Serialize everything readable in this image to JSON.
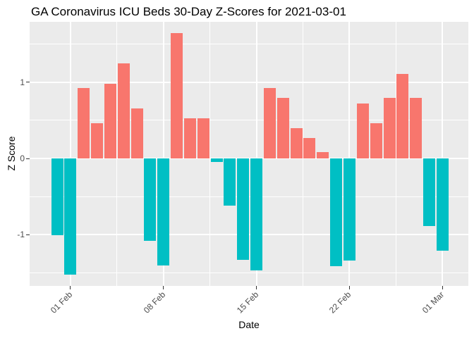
{
  "chart_data": {
    "type": "bar",
    "title": "GA Coronavirus ICU Beds 30-Day Z-Scores for 2021-03-01",
    "xlabel": "Date",
    "ylabel": "Z Score",
    "x": [
      "2021-01-31",
      "2021-02-01",
      "2021-02-02",
      "2021-02-03",
      "2021-02-04",
      "2021-02-05",
      "2021-02-06",
      "2021-02-07",
      "2021-02-08",
      "2021-02-09",
      "2021-02-10",
      "2021-02-11",
      "2021-02-12",
      "2021-02-13",
      "2021-02-14",
      "2021-02-15",
      "2021-02-16",
      "2021-02-17",
      "2021-02-18",
      "2021-02-19",
      "2021-02-20",
      "2021-02-21",
      "2021-02-22",
      "2021-02-23",
      "2021-02-24",
      "2021-02-25",
      "2021-02-26",
      "2021-02-27",
      "2021-02-28",
      "2021-03-01"
    ],
    "values": [
      -1.01,
      -1.52,
      0.92,
      0.46,
      0.98,
      1.25,
      0.66,
      -1.08,
      -1.4,
      1.64,
      0.53,
      0.53,
      -0.05,
      -0.62,
      -1.33,
      -1.47,
      0.92,
      0.79,
      0.4,
      0.27,
      0.08,
      -1.41,
      -1.34,
      0.72,
      0.46,
      0.79,
      1.11,
      0.79,
      -0.89,
      -1.21
    ],
    "ylim": [
      -1.68,
      1.8
    ],
    "y_major_ticks": [
      1,
      0,
      -1
    ],
    "y_tick_labels": [
      "1",
      "0",
      "-1"
    ],
    "y_minor_gridlines": [
      1.5,
      0.5,
      -0.5,
      -1.5
    ],
    "x_tick_labels": [
      "01 Feb",
      "08 Feb",
      "15 Feb",
      "22 Feb",
      "01 Mar"
    ],
    "x_tick_positions": [
      1,
      8,
      15,
      22,
      29
    ],
    "x_minor_positions": [
      4.5,
      11.5,
      18.5,
      25.5
    ],
    "grid": true,
    "legend": "none",
    "colors": {
      "positive": "#F8766D",
      "negative": "#00BFC4",
      "panel": "#EBEBEB",
      "gridline": "#FFFFFF",
      "tick_text": "#4D4D4D",
      "tick_mark": "#333333",
      "title_text": "#000000"
    }
  }
}
